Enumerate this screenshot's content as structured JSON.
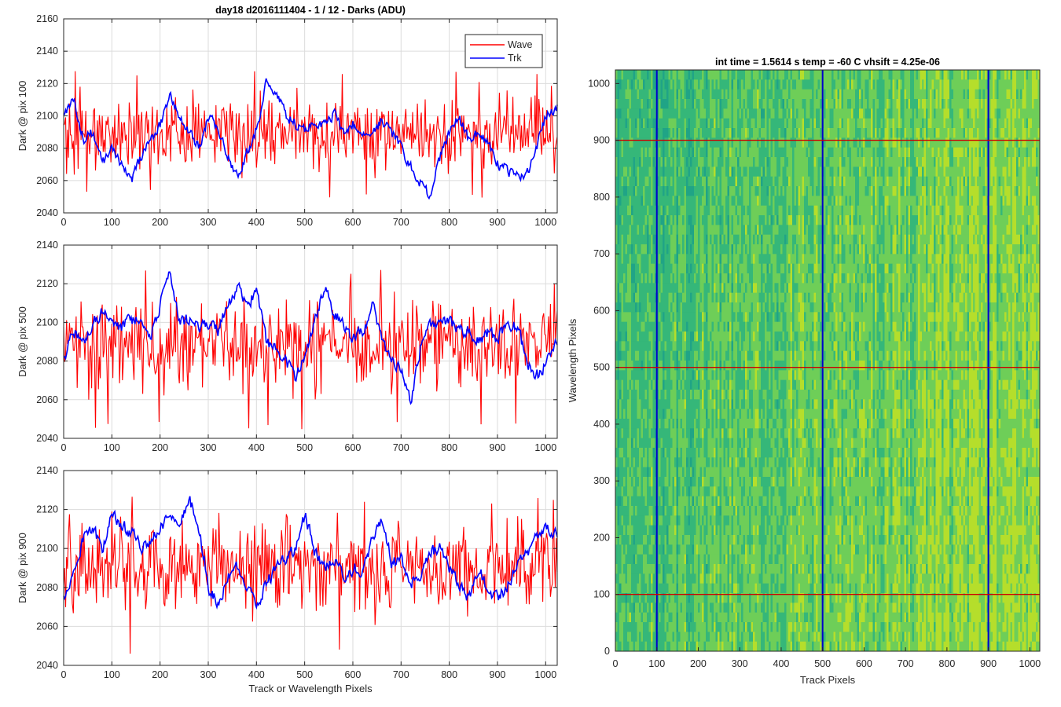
{
  "figure_title": "day18 d2016111404 - 1 / 12 - Darks (ADU)",
  "colors": {
    "wave": "#ff0000",
    "trk": "#0000ff",
    "grid": "#dcdcdc",
    "axis": "#262626"
  },
  "chart_data": [
    {
      "type": "line",
      "title": "day18 d2016111404 - 1 / 12 - Darks (ADU)",
      "xlabel": "",
      "ylabel": "Dark @ pix 100",
      "xlim": [
        0,
        1024
      ],
      "ylim": [
        2040,
        2160
      ],
      "xticks": [
        0,
        100,
        200,
        300,
        400,
        500,
        600,
        700,
        800,
        900,
        1000
      ],
      "yticks": [
        2040,
        2060,
        2080,
        2100,
        2120,
        2140,
        2160
      ],
      "grid": true,
      "legend": {
        "position": "top-right",
        "entries": [
          "Wave",
          "Trk"
        ]
      },
      "series": [
        {
          "name": "Wave",
          "color": "#ff0000",
          "mean": 2090,
          "noise_amplitude": 12,
          "x_step": 2,
          "range": [
            2049,
            2130
          ]
        },
        {
          "name": "Trk",
          "color": "#0000ff",
          "x": [
            0,
            20,
            40,
            60,
            80,
            100,
            120,
            140,
            160,
            180,
            200,
            220,
            240,
            260,
            280,
            300,
            320,
            340,
            360,
            380,
            400,
            420,
            440,
            460,
            480,
            500,
            520,
            540,
            560,
            580,
            600,
            620,
            640,
            660,
            680,
            700,
            720,
            740,
            760,
            780,
            800,
            820,
            840,
            860,
            880,
            900,
            920,
            940,
            960,
            980,
            1000,
            1024
          ],
          "y": [
            2100,
            2110,
            2085,
            2090,
            2070,
            2082,
            2068,
            2060,
            2075,
            2085,
            2095,
            2112,
            2100,
            2090,
            2080,
            2100,
            2092,
            2075,
            2062,
            2078,
            2092,
            2122,
            2115,
            2100,
            2095,
            2090,
            2098,
            2094,
            2102,
            2090,
            2095,
            2088,
            2090,
            2098,
            2090,
            2080,
            2068,
            2058,
            2050,
            2075,
            2090,
            2098,
            2085,
            2090,
            2082,
            2070,
            2066,
            2062,
            2065,
            2080,
            2100,
            2105
          ]
        }
      ]
    },
    {
      "type": "line",
      "title": "",
      "xlabel": "",
      "ylabel": "Dark @ pix 500",
      "xlim": [
        0,
        1024
      ],
      "ylim": [
        2040,
        2140
      ],
      "xticks": [
        0,
        100,
        200,
        300,
        400,
        500,
        600,
        700,
        800,
        900,
        1000
      ],
      "yticks": [
        2040,
        2060,
        2080,
        2100,
        2120,
        2140
      ],
      "grid": true,
      "series": [
        {
          "name": "Wave",
          "color": "#ff0000",
          "mean": 2089,
          "noise_amplitude": 12,
          "x_step": 2,
          "range": [
            2044,
            2131
          ]
        },
        {
          "name": "Trk",
          "color": "#0000ff",
          "x": [
            0,
            20,
            40,
            60,
            80,
            100,
            120,
            140,
            160,
            180,
            200,
            220,
            240,
            260,
            280,
            300,
            320,
            340,
            360,
            380,
            400,
            420,
            440,
            460,
            480,
            500,
            520,
            540,
            560,
            580,
            600,
            620,
            640,
            660,
            680,
            700,
            720,
            740,
            760,
            780,
            800,
            820,
            840,
            860,
            880,
            900,
            920,
            940,
            960,
            980,
            1000,
            1024
          ],
          "y": [
            2082,
            2095,
            2090,
            2100,
            2105,
            2100,
            2098,
            2102,
            2100,
            2092,
            2110,
            2125,
            2100,
            2102,
            2098,
            2100,
            2095,
            2110,
            2118,
            2110,
            2115,
            2090,
            2085,
            2080,
            2072,
            2085,
            2100,
            2118,
            2105,
            2098,
            2092,
            2096,
            2108,
            2090,
            2080,
            2075,
            2060,
            2088,
            2098,
            2100,
            2102,
            2095,
            2096,
            2090,
            2094,
            2092,
            2100,
            2098,
            2080,
            2072,
            2078,
            2092
          ]
        }
      ]
    },
    {
      "type": "line",
      "title": "",
      "xlabel": "Track or Wavelength Pixels",
      "ylabel": "Dark @ pix 900",
      "xlim": [
        0,
        1024
      ],
      "ylim": [
        2040,
        2140
      ],
      "xticks": [
        0,
        100,
        200,
        300,
        400,
        500,
        600,
        700,
        800,
        900,
        1000
      ],
      "yticks": [
        2040,
        2060,
        2080,
        2100,
        2120,
        2140
      ],
      "grid": true,
      "series": [
        {
          "name": "Wave",
          "color": "#ff0000",
          "mean": 2091,
          "noise_amplitude": 12,
          "x_step": 2,
          "range": [
            2044,
            2127
          ]
        },
        {
          "name": "Trk",
          "color": "#0000ff",
          "x": [
            0,
            20,
            40,
            60,
            80,
            100,
            120,
            140,
            160,
            180,
            200,
            220,
            240,
            260,
            280,
            300,
            320,
            340,
            360,
            380,
            400,
            420,
            440,
            460,
            480,
            500,
            520,
            540,
            560,
            580,
            600,
            620,
            640,
            660,
            680,
            700,
            720,
            740,
            760,
            780,
            800,
            820,
            840,
            860,
            880,
            900,
            920,
            940,
            960,
            980,
            1000,
            1024
          ],
          "y": [
            2075,
            2090,
            2105,
            2110,
            2100,
            2118,
            2112,
            2108,
            2100,
            2105,
            2110,
            2118,
            2115,
            2125,
            2110,
            2080,
            2070,
            2085,
            2092,
            2080,
            2070,
            2082,
            2090,
            2095,
            2100,
            2118,
            2098,
            2090,
            2095,
            2085,
            2090,
            2088,
            2105,
            2115,
            2092,
            2095,
            2082,
            2088,
            2098,
            2100,
            2090,
            2080,
            2075,
            2090,
            2078,
            2075,
            2080,
            2092,
            2098,
            2105,
            2110,
            2108
          ]
        }
      ]
    },
    {
      "type": "heatmap",
      "title": "int time = 1.5614 s    temp = -60 C    vhsift = 4.25e-06",
      "xlabel": "Track Pixels",
      "ylabel": "Wavelength Pixels",
      "xlim": [
        0,
        1024
      ],
      "ylim": [
        0,
        1024
      ],
      "xticks": [
        0,
        100,
        200,
        300,
        400,
        500,
        600,
        700,
        800,
        900,
        1000
      ],
      "yticks": [
        0,
        100,
        200,
        300,
        400,
        500,
        600,
        700,
        800,
        900,
        1000
      ],
      "colormap": [
        "#20a486",
        "#35b779",
        "#6ece58",
        "#b5de2b"
      ],
      "vertical_markers": {
        "x": [
          100,
          500,
          900
        ],
        "color": "#0000cc"
      },
      "horizontal_markers": {
        "y": [
          100,
          500,
          900
        ],
        "color": "#cc0000"
      }
    }
  ]
}
